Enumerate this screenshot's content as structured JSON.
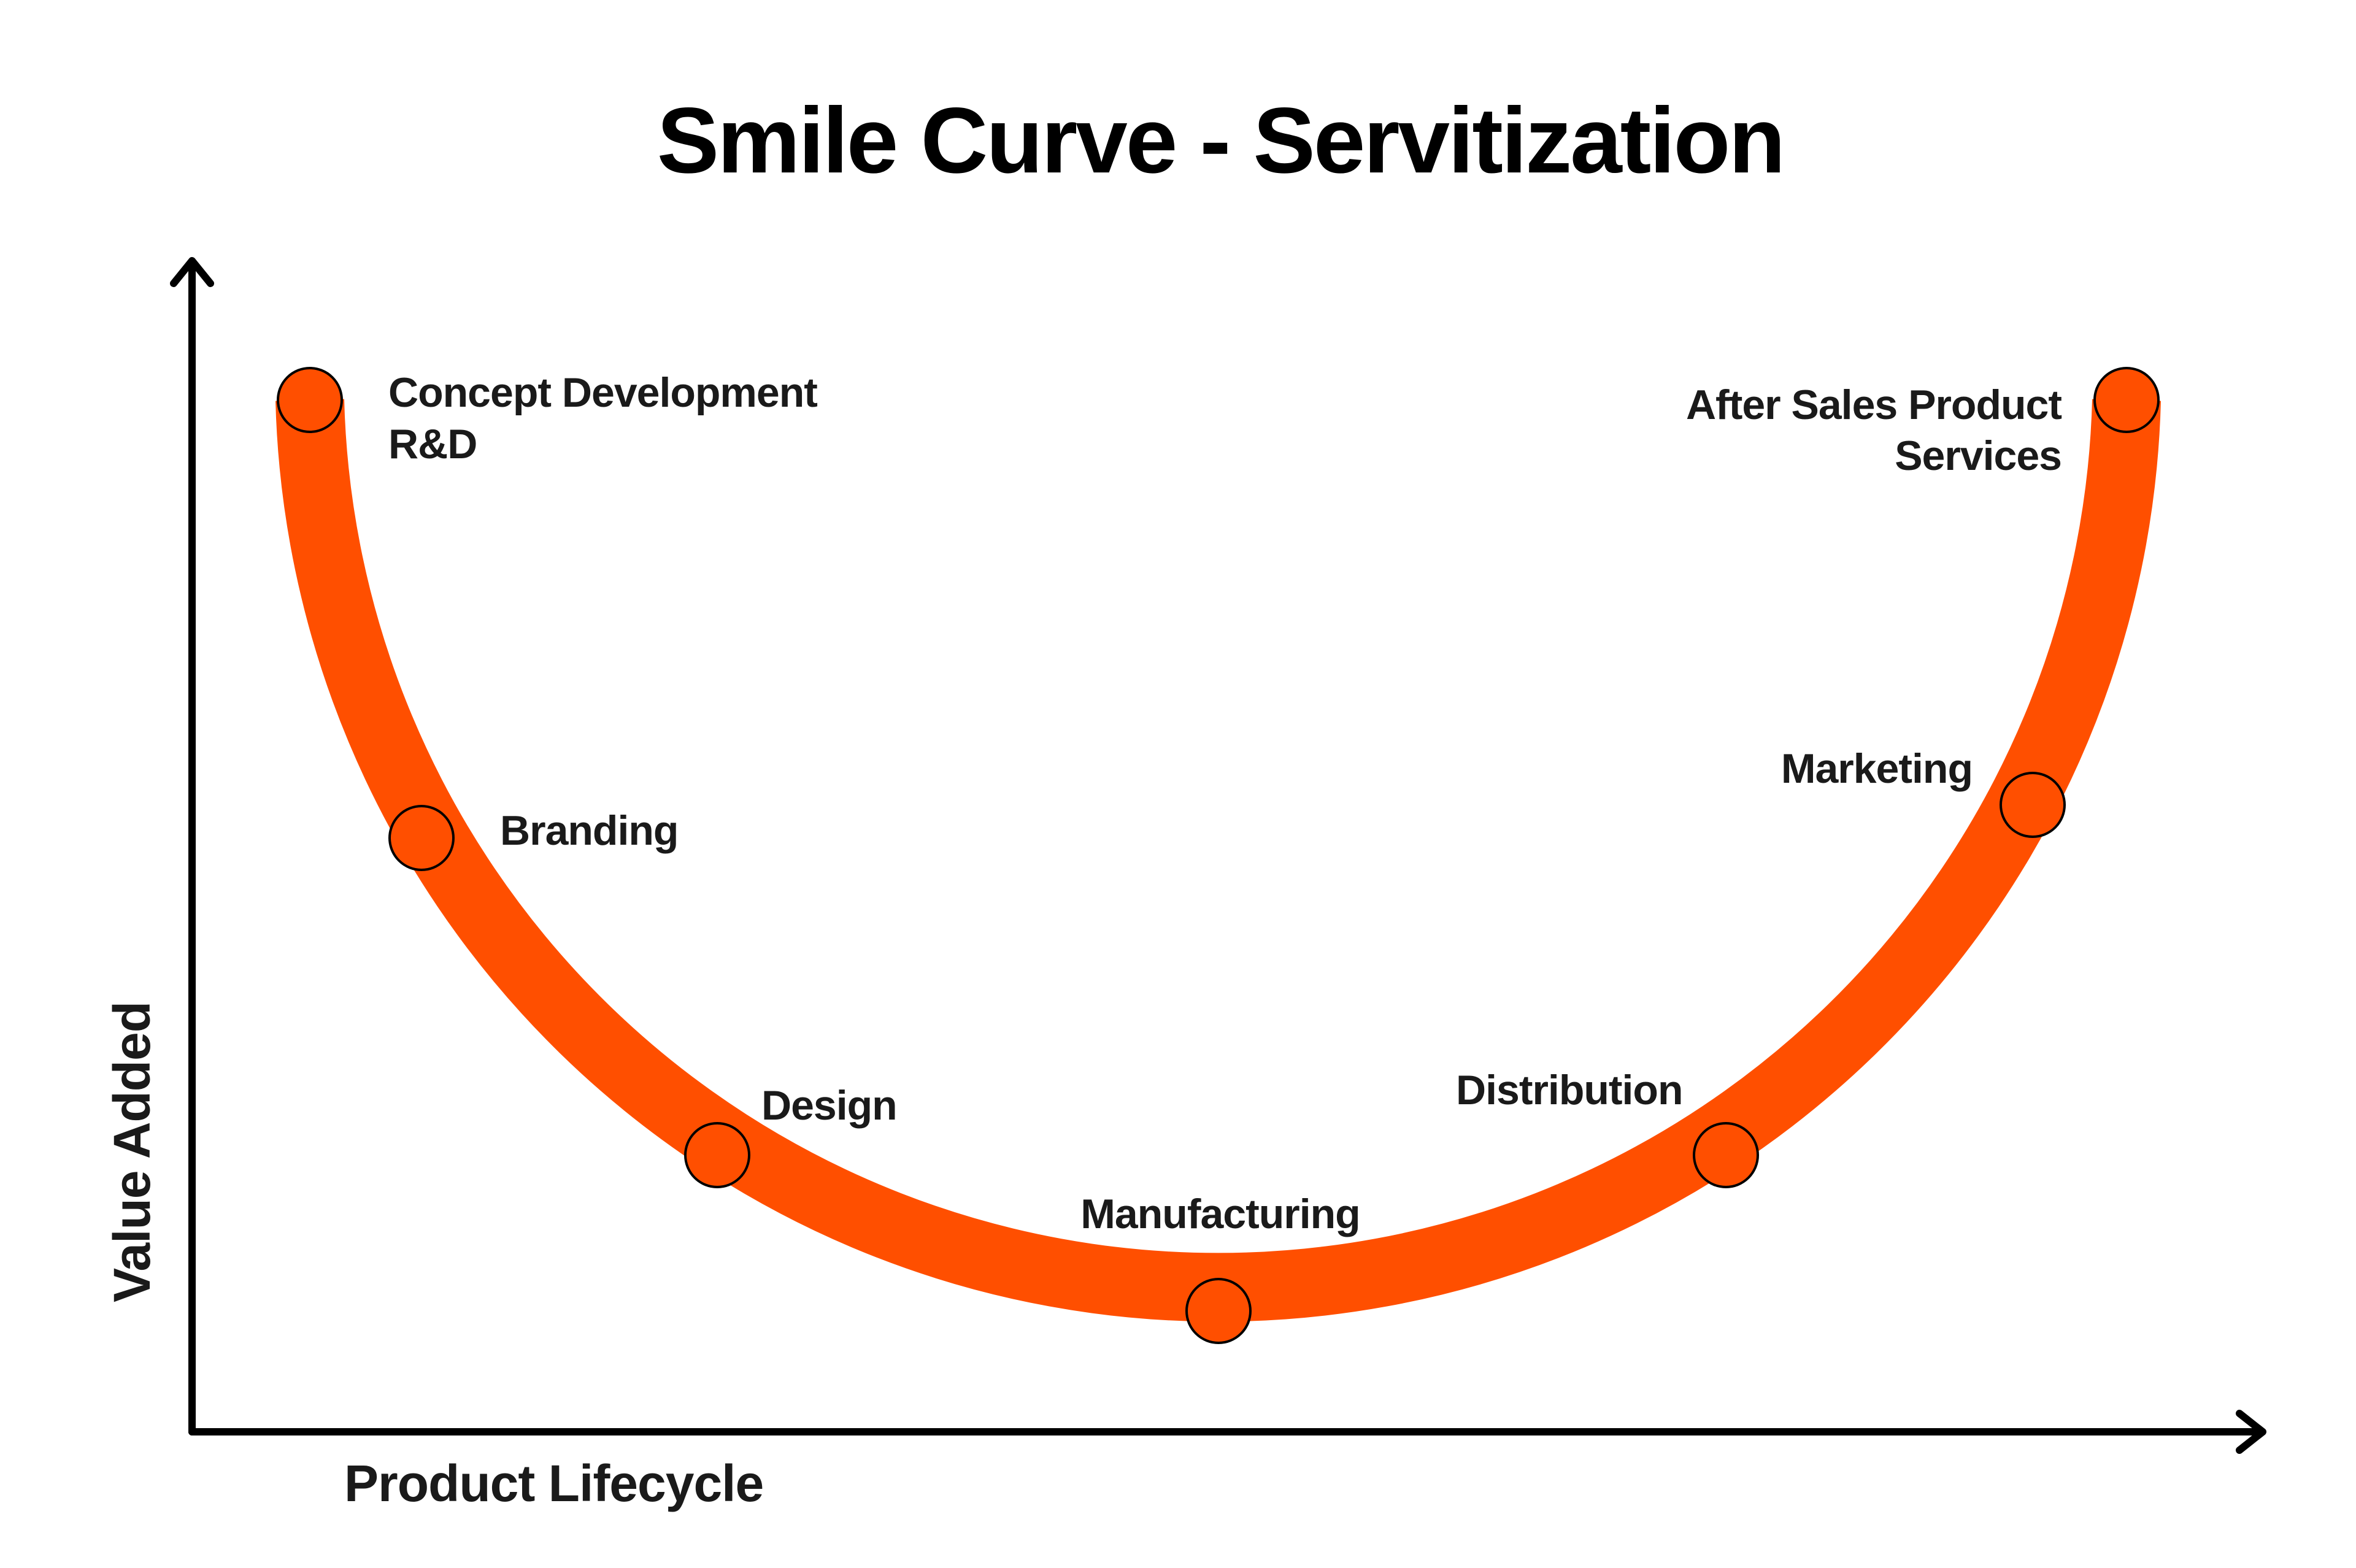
{
  "title": "Smile Curve - Servitization",
  "axes": {
    "y_label": "Value Added",
    "x_label": "Product Lifecycle"
  },
  "nodes": [
    {
      "lines": [
        "Concept Development",
        "R&D"
      ]
    },
    {
      "lines": [
        "Branding"
      ]
    },
    {
      "lines": [
        "Design"
      ]
    },
    {
      "lines": [
        "Manufacturing"
      ]
    },
    {
      "lines": [
        "Distribution"
      ]
    },
    {
      "lines": [
        "Marketing"
      ]
    },
    {
      "lines": [
        "After Sales Product",
        "Services"
      ]
    }
  ]
}
